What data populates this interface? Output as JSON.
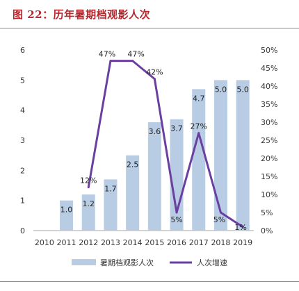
{
  "title": "图 22：历年暑期档观影人次",
  "chart_data": {
    "type": "bar+line",
    "categories": [
      "2010",
      "2011",
      "2012",
      "2013",
      "2014",
      "2015",
      "2016",
      "2017",
      "2018",
      "2019"
    ],
    "series": [
      {
        "name": "暑期档观影人次",
        "type": "bar",
        "axis": "left",
        "color": "#b8cce4",
        "values": [
          null,
          1.0,
          1.2,
          1.7,
          2.5,
          3.6,
          3.7,
          4.7,
          5.0,
          5.0
        ],
        "labels": [
          "",
          "1.0",
          "1.2",
          "1.7",
          "2.5",
          "3.6",
          "3.7",
          "4.7",
          "5.0",
          "5.0"
        ]
      },
      {
        "name": "人次增速",
        "type": "line",
        "axis": "right",
        "color": "#6b3fa0",
        "values": [
          null,
          null,
          12,
          47,
          47,
          42,
          5,
          27,
          5,
          1
        ],
        "labels": [
          "",
          "",
          "12%",
          "47%",
          "47%",
          "42%",
          "5%",
          "27%",
          "5%",
          "1%"
        ]
      }
    ],
    "y_left": {
      "min": 0,
      "max": 6,
      "ticks": [
        "0",
        "1",
        "2",
        "3",
        "4",
        "5",
        "6"
      ]
    },
    "y_right": {
      "min": 0,
      "max": 50,
      "ticks": [
        "0%",
        "5%",
        "10%",
        "15%",
        "20%",
        "25%",
        "30%",
        "35%",
        "40%",
        "45%",
        "50%"
      ]
    },
    "grid": false,
    "legend_position": "bottom"
  }
}
